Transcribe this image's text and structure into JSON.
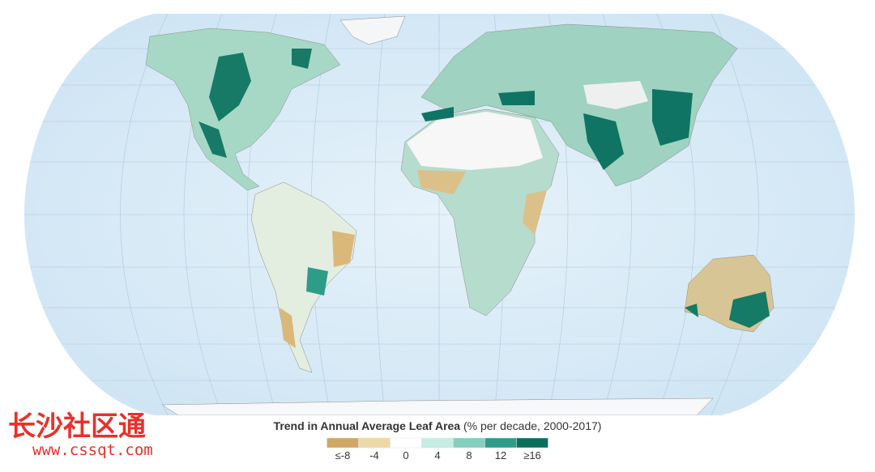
{
  "legend": {
    "title": "Trend in Annual Average Leaf Area",
    "subtitle": "(% per decade, 2000-2017)",
    "items": [
      {
        "label": "≤-8",
        "color": "#cfa866"
      },
      {
        "label": "-4",
        "color": "#ecd9a6"
      },
      {
        "label": "0",
        "color": "#ffffff"
      },
      {
        "label": "4",
        "color": "#c6ece4"
      },
      {
        "label": "8",
        "color": "#84cfbe"
      },
      {
        "label": "12",
        "color": "#2e9c88"
      },
      {
        "label": "≥16",
        "color": "#0b6e5c"
      }
    ]
  },
  "watermark": {
    "name": "长沙社区通",
    "url": "www.cssqt.com"
  }
}
